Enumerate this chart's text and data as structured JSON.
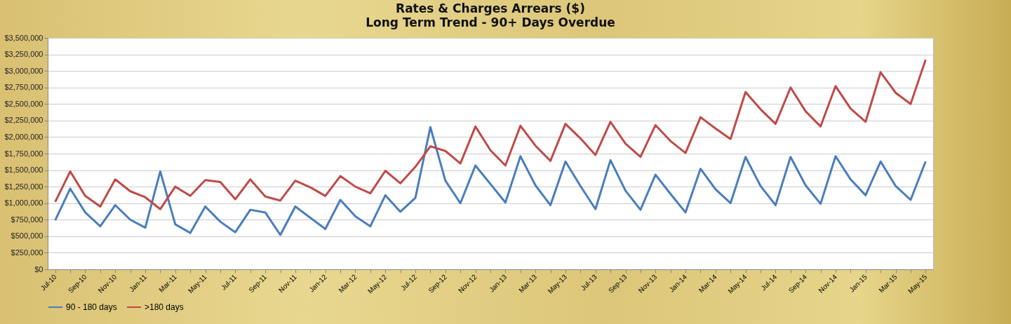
{
  "chart_data": {
    "type": "line",
    "title": "Rates & Charges Arrears ($)",
    "subtitle": "Long Term Trend - 90+ Days Overdue",
    "categories": [
      "Jul-10",
      null,
      "Sep-10",
      null,
      "Nov-10",
      null,
      "Jan-11",
      null,
      "Mar-11",
      null,
      "May-11",
      null,
      "Jul-11",
      null,
      "Sep-11",
      null,
      "Nov-11",
      null,
      "Jan-12",
      null,
      "Mar-12",
      null,
      "May-12",
      null,
      "Jul-12",
      null,
      "Sep-12",
      null,
      "Nov-12",
      null,
      "Jan-13",
      null,
      "Mar-13",
      null,
      "May-13",
      null,
      "Jul-13",
      null,
      "Sep-13",
      null,
      "Nov-13",
      null,
      "Jan-14",
      null,
      "Mar-14",
      null,
      "May-14",
      null,
      "Jul-14",
      null,
      "Sep-14",
      null,
      "Nov-14",
      null,
      "Jan-15",
      null,
      "Mar-15",
      null,
      "May-15"
    ],
    "series": [
      {
        "name": "90 - 180 days",
        "color": "#4a7ebb",
        "values": [
          740000,
          1220000,
          860000,
          650000,
          970000,
          750000,
          630000,
          1480000,
          680000,
          550000,
          950000,
          720000,
          560000,
          900000,
          860000,
          520000,
          950000,
          780000,
          610000,
          1050000,
          800000,
          650000,
          1120000,
          870000,
          1080000,
          2150000,
          1340000,
          1000000,
          1570000,
          1290000,
          1010000,
          1710000,
          1270000,
          970000,
          1630000,
          1260000,
          910000,
          1650000,
          1190000,
          900000,
          1430000,
          1140000,
          860000,
          1520000,
          1210000,
          1000000,
          1700000,
          1260000,
          970000,
          1700000,
          1270000,
          990000,
          1710000,
          1360000,
          1120000,
          1630000,
          1260000,
          1050000,
          1630000
        ]
      },
      {
        "name": ">180 days",
        "color": "#be4b48",
        "values": [
          1020000,
          1480000,
          1110000,
          950000,
          1360000,
          1180000,
          1090000,
          910000,
          1250000,
          1110000,
          1350000,
          1320000,
          1060000,
          1360000,
          1100000,
          1040000,
          1340000,
          1240000,
          1110000,
          1410000,
          1250000,
          1150000,
          1490000,
          1300000,
          1550000,
          1860000,
          1790000,
          1600000,
          2160000,
          1800000,
          1570000,
          2170000,
          1870000,
          1640000,
          2200000,
          1980000,
          1730000,
          2230000,
          1900000,
          1700000,
          2180000,
          1940000,
          1760000,
          2300000,
          2130000,
          1970000,
          2680000,
          2420000,
          2200000,
          2750000,
          2390000,
          2160000,
          2770000,
          2430000,
          2230000,
          2980000,
          2670000,
          2500000,
          3170000
        ]
      }
    ],
    "ylim": [
      0,
      3500000
    ],
    "yticks": [
      {
        "value": 0,
        "label": "$0"
      },
      {
        "value": 250000,
        "label": "$250,000"
      },
      {
        "value": 500000,
        "label": "$500,000"
      },
      {
        "value": 750000,
        "label": "$750,000"
      },
      {
        "value": 1000000,
        "label": "$1,000,000"
      },
      {
        "value": 1250000,
        "label": "$1,250,000"
      },
      {
        "value": 1500000,
        "label": "$1,500,000"
      },
      {
        "value": 1750000,
        "label": "$1,750,000"
      },
      {
        "value": 2000000,
        "label": "$2,000,000"
      },
      {
        "value": 2250000,
        "label": "$2,250,000"
      },
      {
        "value": 2500000,
        "label": "$2,500,000"
      },
      {
        "value": 2750000,
        "label": "$2,750,000"
      },
      {
        "value": 3000000,
        "label": "$3,000,000"
      },
      {
        "value": 3250000,
        "label": "$3,250,000"
      },
      {
        "value": 3500000,
        "label": "$3,500,000"
      }
    ],
    "grid": "y",
    "legend": "bottom",
    "marker": "none",
    "line_style": "solid"
  }
}
